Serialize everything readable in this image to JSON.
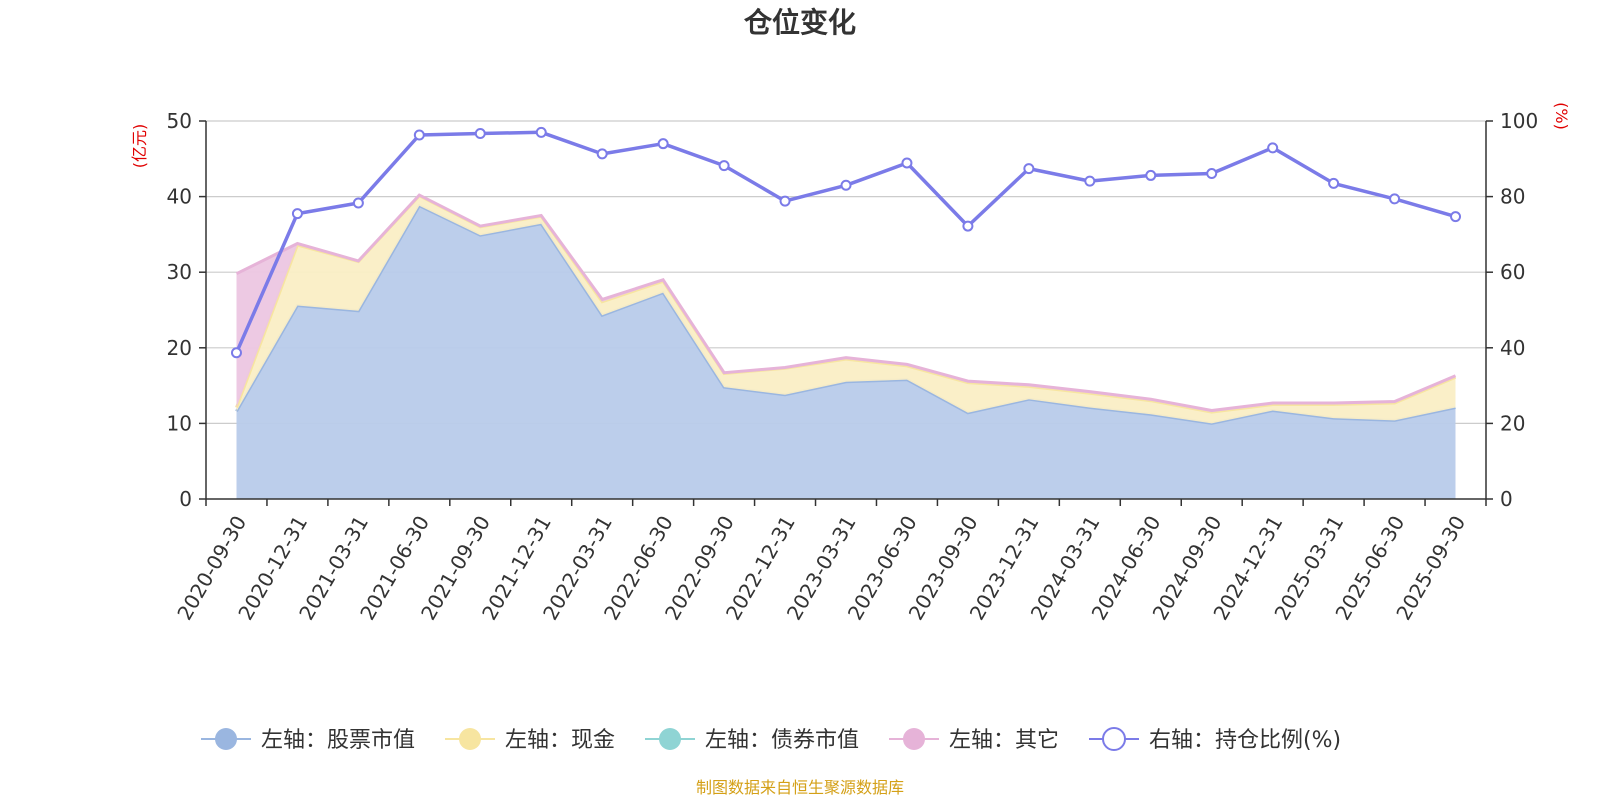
{
  "chart_data": {
    "type": "area",
    "title": "仓位变化",
    "left_unit": "(亿元)",
    "right_unit": "(%)",
    "categories": [
      "2020-09-30",
      "2020-12-31",
      "2021-03-31",
      "2021-06-30",
      "2021-09-30",
      "2021-12-31",
      "2022-03-31",
      "2022-06-30",
      "2022-09-30",
      "2022-12-31",
      "2023-03-31",
      "2023-06-30",
      "2023-09-30",
      "2023-12-31",
      "2024-03-31",
      "2024-06-30",
      "2024-09-30",
      "2024-12-31",
      "2025-03-31",
      "2025-06-30",
      "2025-09-30"
    ],
    "left_axis": {
      "min": 0,
      "max": 50,
      "ticks": [
        0,
        10,
        20,
        30,
        40,
        50
      ]
    },
    "right_axis": {
      "min": 0,
      "max": 100,
      "ticks": [
        0,
        20,
        40,
        60,
        80,
        100
      ]
    },
    "grid": true,
    "legend_position": "bottom",
    "stacked_series": [
      {
        "name": "左轴：股票市值",
        "axis": "left",
        "color": "#9ab6e0",
        "fill": "#b8cbea",
        "values": [
          11.6,
          25.6,
          24.9,
          38.8,
          34.9,
          36.4,
          24.3,
          27.3,
          14.8,
          13.8,
          15.5,
          15.8,
          11.4,
          13.2,
          12.1,
          11.2,
          10.0,
          11.7,
          10.7,
          10.4,
          12.1
        ]
      },
      {
        "name": "左轴：现金",
        "axis": "left",
        "color": "#f7e5a0",
        "fill": "#faeec5",
        "values": [
          0.5,
          8.0,
          6.5,
          1.3,
          1.1,
          1.0,
          1.8,
          1.5,
          1.8,
          3.5,
          3.0,
          1.8,
          4.0,
          1.7,
          1.9,
          1.8,
          1.5,
          0.8,
          1.8,
          2.3,
          4.0
        ]
      },
      {
        "name": "左轴：债券市值",
        "axis": "left",
        "color": "#8fd4d4",
        "fill": "#b9e4e4",
        "values": [
          0,
          0,
          0,
          0,
          0,
          0,
          0,
          0,
          0,
          0,
          0,
          0,
          0,
          0,
          0,
          0,
          0,
          0,
          0,
          0,
          0
        ]
      },
      {
        "name": "左轴：其它",
        "axis": "left",
        "color": "#e6b3d8",
        "fill": "#ecc6e2",
        "values": [
          17.7,
          0.2,
          0.1,
          0.1,
          0.1,
          0.1,
          0.3,
          0.2,
          0.1,
          0.1,
          0.2,
          0.2,
          0.2,
          0.2,
          0.2,
          0.2,
          0.2,
          0.2,
          0.2,
          0.2,
          0.2
        ]
      }
    ],
    "line_series": [
      {
        "name": "右轴：持仓比例(%)",
        "axis": "right",
        "color": "#7b7be8",
        "values": [
          38.7,
          75.5,
          78.3,
          96.3,
          96.7,
          97.0,
          91.3,
          94.0,
          88.2,
          78.8,
          83.0,
          88.9,
          72.2,
          87.4,
          84.1,
          85.6,
          86.1,
          92.9,
          83.5,
          79.4,
          74.7
        ]
      }
    ]
  },
  "source_note": "制图数据来自恒生聚源数据库",
  "source_color": "#d4a017",
  "unit_color": "#e00000"
}
